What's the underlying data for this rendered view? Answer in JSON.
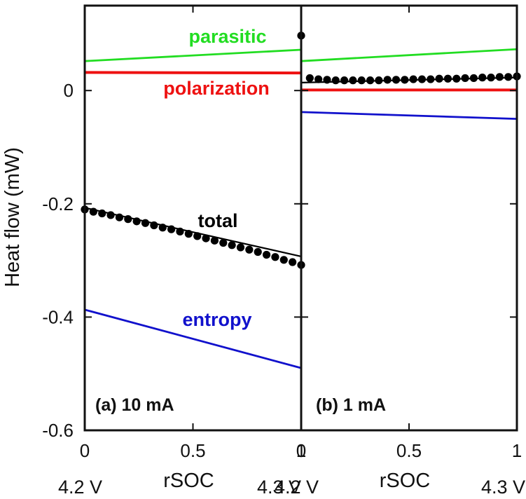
{
  "chart_data": {
    "type": "line",
    "ylabel": "Heat flow (mW)",
    "xlabel": "rSOC",
    "ylim": [
      -0.6,
      0.15
    ],
    "xlim": [
      0,
      1
    ],
    "y_ticks": [
      -0.6,
      -0.4,
      -0.2,
      0
    ],
    "y_tick_labels": [
      "-0.6",
      "-0.4",
      "-0.2",
      "0"
    ],
    "x_ticks": [
      0,
      0.5,
      1
    ],
    "x_tick_labels": [
      "0",
      "0.5",
      "1"
    ],
    "grid": false,
    "colors": {
      "parasitic": "#22dd22",
      "polarization": "#ee1111",
      "total": "#000000",
      "entropy": "#1111cc"
    },
    "panels": [
      {
        "label": "(a) 10 mA",
        "voltage_start": "4.2 V",
        "voltage_end": "4.3 V",
        "series": [
          {
            "name": "parasitic",
            "type": "line",
            "x": [
              0,
              1
            ],
            "y": [
              0.052,
              0.072
            ]
          },
          {
            "name": "polarization",
            "type": "line",
            "x": [
              0,
              1
            ],
            "y": [
              0.032,
              0.031
            ]
          },
          {
            "name": "total",
            "type": "line",
            "x": [
              0,
              1
            ],
            "y": [
              -0.207,
              -0.293
            ]
          },
          {
            "name": "entropy",
            "type": "line",
            "x": [
              0,
              1
            ],
            "y": [
              -0.387,
              -0.49
            ]
          },
          {
            "name": "total",
            "type": "scatter",
            "x": [
              0,
              0.04,
              0.08,
              0.12,
              0.16,
              0.2,
              0.24,
              0.28,
              0.32,
              0.36,
              0.4,
              0.44,
              0.48,
              0.52,
              0.56,
              0.6,
              0.64,
              0.68,
              0.72,
              0.76,
              0.8,
              0.84,
              0.88,
              0.92,
              0.96,
              1.0
            ],
            "y": [
              -0.21,
              -0.214,
              -0.217,
              -0.22,
              -0.224,
              -0.227,
              -0.231,
              -0.234,
              -0.238,
              -0.242,
              -0.245,
              -0.249,
              -0.253,
              -0.257,
              -0.261,
              -0.265,
              -0.269,
              -0.273,
              -0.277,
              -0.281,
              -0.285,
              -0.29,
              -0.294,
              -0.299,
              -0.303,
              -0.308
            ]
          }
        ],
        "annotations": [
          {
            "text": "parasitic",
            "color": "#22dd22"
          },
          {
            "text": "polarization",
            "color": "#ee1111"
          },
          {
            "text": "total",
            "color": "#000000"
          },
          {
            "text": "entropy",
            "color": "#1111cc"
          }
        ]
      },
      {
        "label": "(b) 1 mA",
        "voltage_start": "4.2 V",
        "voltage_end": "4.3 V",
        "series": [
          {
            "name": "parasitic",
            "type": "line",
            "x": [
              0,
              1
            ],
            "y": [
              0.052,
              0.073
            ]
          },
          {
            "name": "polarization",
            "type": "line",
            "x": [
              0,
              1
            ],
            "y": [
              0.001,
              0.001
            ]
          },
          {
            "name": "total",
            "type": "line",
            "x": [
              0,
              1
            ],
            "y": [
              0.014,
              0.023
            ]
          },
          {
            "name": "entropy",
            "type": "line",
            "x": [
              0,
              1
            ],
            "y": [
              -0.038,
              -0.05
            ]
          },
          {
            "name": "total",
            "type": "scatter",
            "x": [
              0,
              0.04,
              0.08,
              0.12,
              0.16,
              0.2,
              0.24,
              0.28,
              0.32,
              0.36,
              0.4,
              0.44,
              0.48,
              0.52,
              0.56,
              0.6,
              0.64,
              0.68,
              0.72,
              0.76,
              0.8,
              0.84,
              0.88,
              0.92,
              0.96,
              1.0
            ],
            "y": [
              0.097,
              0.022,
              0.02,
              0.019,
              0.018,
              0.018,
              0.018,
              0.018,
              0.018,
              0.018,
              0.019,
              0.019,
              0.019,
              0.02,
              0.02,
              0.02,
              0.021,
              0.021,
              0.021,
              0.022,
              0.022,
              0.023,
              0.023,
              0.024,
              0.024,
              0.025
            ]
          }
        ]
      }
    ]
  }
}
